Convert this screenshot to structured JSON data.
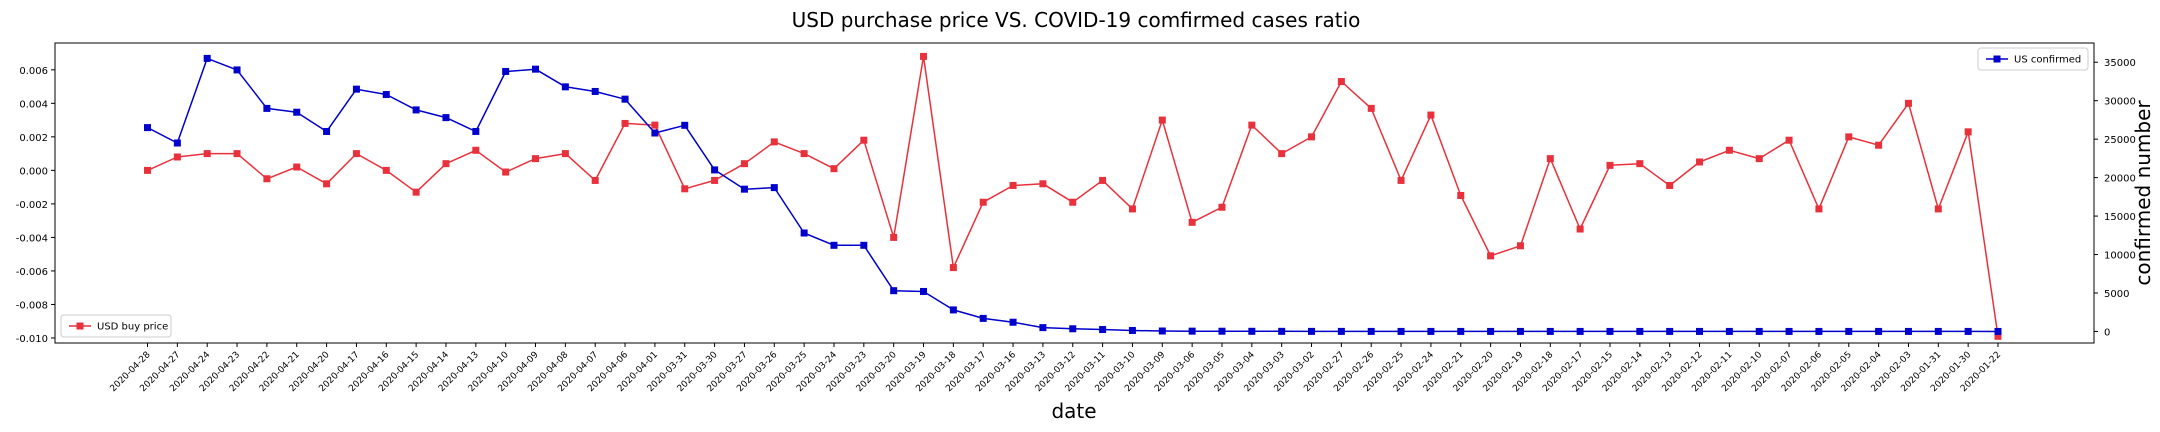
{
  "chart_data": {
    "type": "line",
    "title": "USD purchase price VS. COVID-19 comfirmed cases ratio",
    "xlabel": "date",
    "ylabel_left": "",
    "ylabel_right": "confirmed number",
    "categories": [
      "2020-04-28",
      "2020-04-27",
      "2020-04-24",
      "2020-04-23",
      "2020-04-22",
      "2020-04-21",
      "2020-04-20",
      "2020-04-17",
      "2020-04-16",
      "2020-04-15",
      "2020-04-14",
      "2020-04-13",
      "2020-04-10",
      "2020-04-09",
      "2020-04-08",
      "2020-04-07",
      "2020-04-06",
      "2020-04-01",
      "2020-03-31",
      "2020-03-30",
      "2020-03-27",
      "2020-03-26",
      "2020-03-25",
      "2020-03-24",
      "2020-03-23",
      "2020-03-20",
      "2020-03-19",
      "2020-03-18",
      "2020-03-17",
      "2020-03-16",
      "2020-03-13",
      "2020-03-12",
      "2020-03-11",
      "2020-03-10",
      "2020-03-09",
      "2020-03-06",
      "2020-03-05",
      "2020-03-04",
      "2020-03-03",
      "2020-03-02",
      "2020-02-27",
      "2020-02-26",
      "2020-02-25",
      "2020-02-24",
      "2020-02-21",
      "2020-02-20",
      "2020-02-19",
      "2020-02-18",
      "2020-02-17",
      "2020-02-15",
      "2020-02-14",
      "2020-02-13",
      "2020-02-12",
      "2020-02-11",
      "2020-02-10",
      "2020-02-07",
      "2020-02-06",
      "2020-02-05",
      "2020-02-04",
      "2020-02-03",
      "2020-01-31",
      "2020-01-30",
      "2020-01-22"
    ],
    "series": [
      {
        "name": "USD buy price",
        "axis": "left",
        "color": "#e8313a",
        "marker": "square",
        "values": [
          0.0,
          0.0008,
          0.001,
          0.001,
          -0.0005,
          0.0002,
          -0.0008,
          0.001,
          0.0,
          -0.0013,
          0.0004,
          0.0012,
          -0.0001,
          0.0007,
          0.001,
          -0.0006,
          0.0028,
          0.0027,
          -0.0011,
          -0.0006,
          0.0004,
          0.0017,
          0.001,
          0.0001,
          0.0018,
          -0.004,
          0.0068,
          -0.0058,
          -0.0019,
          -0.0009,
          -0.0008,
          -0.0019,
          -0.0006,
          -0.0023,
          0.003,
          -0.0031,
          -0.0022,
          0.0027,
          0.001,
          0.002,
          0.0053,
          0.0037,
          -0.0006,
          0.0033,
          -0.0015,
          -0.0051,
          -0.0045,
          0.0007,
          -0.0035,
          0.0003,
          0.0004,
          -0.0009,
          0.0005,
          0.0012,
          0.0007,
          0.0018,
          -0.0023,
          0.002,
          0.0015,
          0.004,
          -0.0023,
          0.0023,
          -0.0099
        ]
      },
      {
        "name": "US confirmed",
        "axis": "right",
        "color": "#0000cc",
        "marker": "square",
        "values": [
          26500,
          24500,
          35500,
          34000,
          29000,
          28500,
          26000,
          31500,
          30800,
          28800,
          27800,
          26000,
          33800,
          34100,
          31800,
          31200,
          30200,
          25800,
          26800,
          21000,
          18500,
          18700,
          12800,
          11200,
          11200,
          5300,
          5200,
          2800,
          1700,
          1200,
          500,
          350,
          250,
          130,
          60,
          40,
          30,
          20,
          15,
          10,
          8,
          6,
          5,
          5,
          5,
          5,
          5,
          5,
          5,
          5,
          5,
          5,
          5,
          5,
          5,
          5,
          5,
          5,
          5,
          5,
          5,
          5,
          1
        ]
      }
    ],
    "ylim_left": [
      -0.0103,
      0.0076
    ],
    "ylim_right": [
      -1500,
      37500
    ],
    "yticks_left": [
      "-0.010",
      "-0.008",
      "-0.006",
      "-0.004",
      "-0.002",
      "0.000",
      "0.002",
      "0.004",
      "0.006"
    ],
    "yticks_left_values": [
      -0.01,
      -0.008,
      -0.006,
      -0.004,
      -0.002,
      0.0,
      0.002,
      0.004,
      0.006
    ],
    "yticks_right": [
      "0",
      "5000",
      "10000",
      "15000",
      "20000",
      "25000",
      "30000",
      "35000"
    ],
    "yticks_right_values": [
      0,
      5000,
      10000,
      15000,
      20000,
      25000,
      30000,
      35000
    ],
    "legends": [
      {
        "label": "USD buy price",
        "placement": "lower-left",
        "series": 0
      },
      {
        "label": "US confirmed",
        "placement": "upper-right",
        "series": 1
      }
    ],
    "grid": false
  }
}
